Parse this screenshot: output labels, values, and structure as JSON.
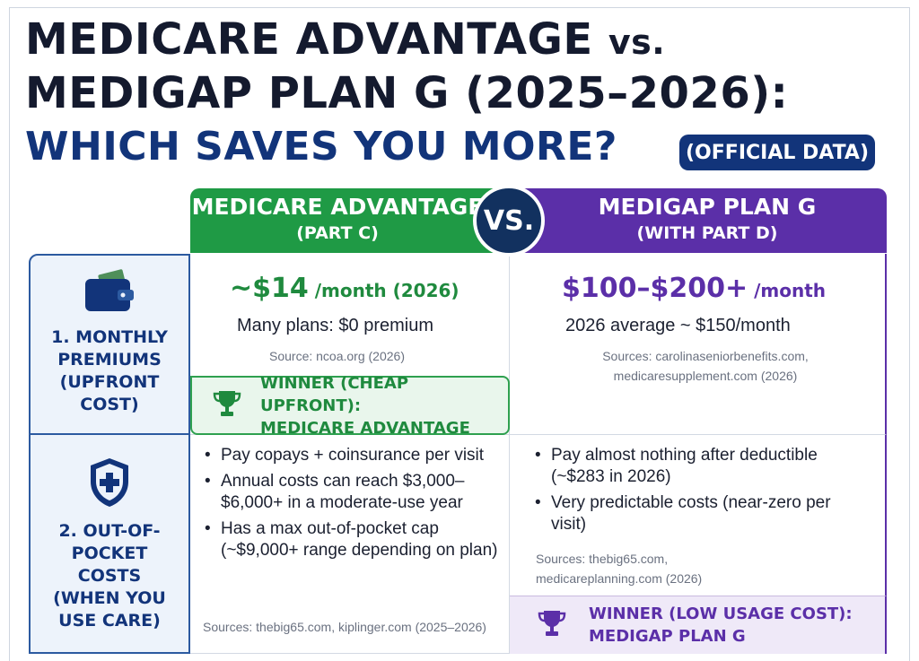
{
  "title": {
    "line1_main": "MEDICARE ADVANTAGE ",
    "line1_vs": "vs.",
    "line2": "MEDIGAP PLAN G (2025–2026):",
    "line3": "WHICH SAVES YOU MORE?",
    "badge": "(OFFICIAL DATA)"
  },
  "columns": {
    "ma": {
      "name": "MEDICARE ADVANTAGE",
      "sub": "(PART C)"
    },
    "vs": "VS.",
    "mg": {
      "name": "MEDIGAP PLAN G",
      "sub": "(WITH PART D)"
    }
  },
  "rows": [
    {
      "label": [
        "1. MONTHLY",
        "PREMIUMS",
        "(UPFRONT COST)"
      ],
      "icon": "wallet-icon",
      "ma": {
        "price": "~$14",
        "price_suffix": " /month (2026)",
        "note": "Many plans: $0 premium",
        "source": "Source: ncoa.org (2026)",
        "winner": [
          "WINNER (CHEAP UPFRONT):",
          "MEDICARE ADVANTAGE"
        ]
      },
      "mg": {
        "price": "$100–$200+",
        "price_suffix": " /month",
        "note": "2026 average ~ $150/month",
        "source": [
          "Sources: carolinaseniorbenefits.com,",
          "medicaresupplement.com (2026)"
        ]
      }
    },
    {
      "label": [
        "2. OUT-OF-POCKET",
        "COSTS",
        "(WHEN YOU",
        "USE CARE)"
      ],
      "icon": "shield-plus-icon",
      "ma": {
        "bullets": [
          "Pay copays + coinsurance per visit",
          "Annual costs can reach $3,000–$6,000+ in a moderate-use year",
          "Has a max out-of-pocket cap (~$9,000+ range depending on plan)"
        ],
        "source": "Sources: thebig65.com, kiplinger.com (2025–2026)"
      },
      "mg": {
        "bullets": [
          "Pay almost nothing after deductible (~$283 in 2026)",
          "Very predictable costs (near-zero per visit)"
        ],
        "source": [
          "Sources: thebig65.com,",
          "medicareplanning.com (2026)"
        ],
        "winner": [
          "WINNER (LOW USAGE COST):",
          "MEDIGAP PLAN G"
        ]
      }
    }
  ],
  "colors": {
    "navy": "#12347a",
    "green": "#1f9a45",
    "purple": "#5b2fa8"
  }
}
